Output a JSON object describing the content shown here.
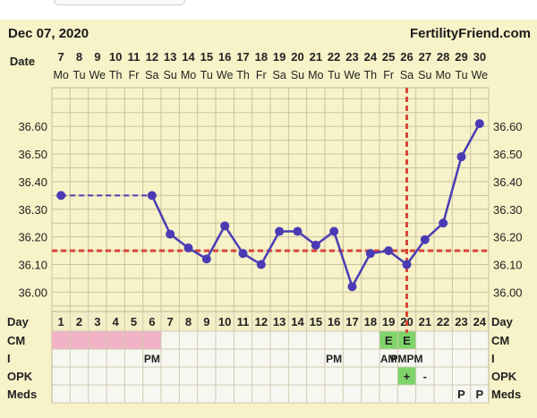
{
  "header": {
    "date": "Dec 07, 2020",
    "site": "FertilityFriend.com"
  },
  "row_labels": {
    "date": "Date",
    "day": "Day",
    "cm": "CM",
    "i": "I",
    "opk": "OPK",
    "meds": "Meds"
  },
  "colors": {
    "background": "#f7f2c8",
    "line": "#4a3bb5",
    "coverline": "#d9463a",
    "cm_pink": "#f2b3c6",
    "fertile_green": "#7ed46a"
  },
  "chart_data": {
    "type": "line",
    "title": "",
    "xlabel": "Date",
    "ylabel": "",
    "ylim": [
      35.93,
      36.74
    ],
    "yticks": [
      "36.00",
      "36.10",
      "36.20",
      "36.30",
      "36.40",
      "36.50",
      "36.60"
    ],
    "grid": true,
    "dates": [
      "7",
      "8",
      "9",
      "10",
      "11",
      "12",
      "13",
      "14",
      "15",
      "16",
      "17",
      "18",
      "19",
      "20",
      "21",
      "22",
      "23",
      "24",
      "25",
      "26",
      "27",
      "28",
      "29",
      "30"
    ],
    "weekdays": [
      "Mo",
      "Tu",
      "We",
      "Th",
      "Fr",
      "Sa",
      "Su",
      "Mo",
      "Tu",
      "We",
      "Th",
      "Fr",
      "Sa",
      "Su",
      "Mo",
      "Tu",
      "We",
      "Th",
      "Fr",
      "Sa",
      "Su",
      "Mo",
      "Tu",
      "We"
    ],
    "cycle_days": [
      "1",
      "2",
      "3",
      "4",
      "5",
      "6",
      "7",
      "8",
      "9",
      "10",
      "11",
      "12",
      "13",
      "14",
      "15",
      "16",
      "17",
      "18",
      "19",
      "20",
      "21",
      "22",
      "23",
      "24"
    ],
    "series": [
      {
        "values": [
          36.35,
          null,
          null,
          null,
          null,
          36.35,
          36.21,
          36.16,
          36.12,
          36.24,
          36.14,
          36.1,
          36.22,
          36.22,
          36.17,
          36.22,
          36.02,
          36.14,
          36.15,
          36.1,
          36.19,
          36.25,
          36.49,
          36.61
        ]
      }
    ],
    "coverline": 36.15,
    "ovulation_day": 20,
    "cm": [
      "",
      "",
      "",
      "",
      "",
      "",
      "",
      "",
      "",
      "",
      "",
      "",
      "",
      "",
      "",
      "",
      "",
      "",
      "E",
      "E",
      "",
      "",
      "",
      ""
    ],
    "cm_highlight": [
      1,
      1,
      1,
      1,
      1,
      1,
      0,
      0,
      0,
      0,
      0,
      0,
      0,
      0,
      0,
      0,
      0,
      0,
      2,
      2,
      0,
      0,
      0,
      0
    ],
    "intercourse": [
      "",
      "",
      "",
      "",
      "",
      "PM",
      "",
      "",
      "",
      "",
      "",
      "",
      "",
      "",
      "",
      "PM",
      "",
      "",
      "AM",
      "PMPM",
      "",
      "",
      "",
      ""
    ],
    "opk": [
      "",
      "",
      "",
      "",
      "",
      "",
      "",
      "",
      "",
      "",
      "",
      "",
      "",
      "",
      "",
      "",
      "",
      "",
      "",
      "+",
      "-",
      "",
      "",
      ""
    ],
    "opk_highlight": [
      0,
      0,
      0,
      0,
      0,
      0,
      0,
      0,
      0,
      0,
      0,
      0,
      0,
      0,
      0,
      0,
      0,
      0,
      0,
      1,
      0,
      0,
      0,
      0
    ],
    "meds": [
      "",
      "",
      "",
      "",
      "",
      "",
      "",
      "",
      "",
      "",
      "",
      "",
      "",
      "",
      "",
      "",
      "",
      "",
      "",
      "",
      "",
      "",
      "P",
      "P"
    ]
  }
}
